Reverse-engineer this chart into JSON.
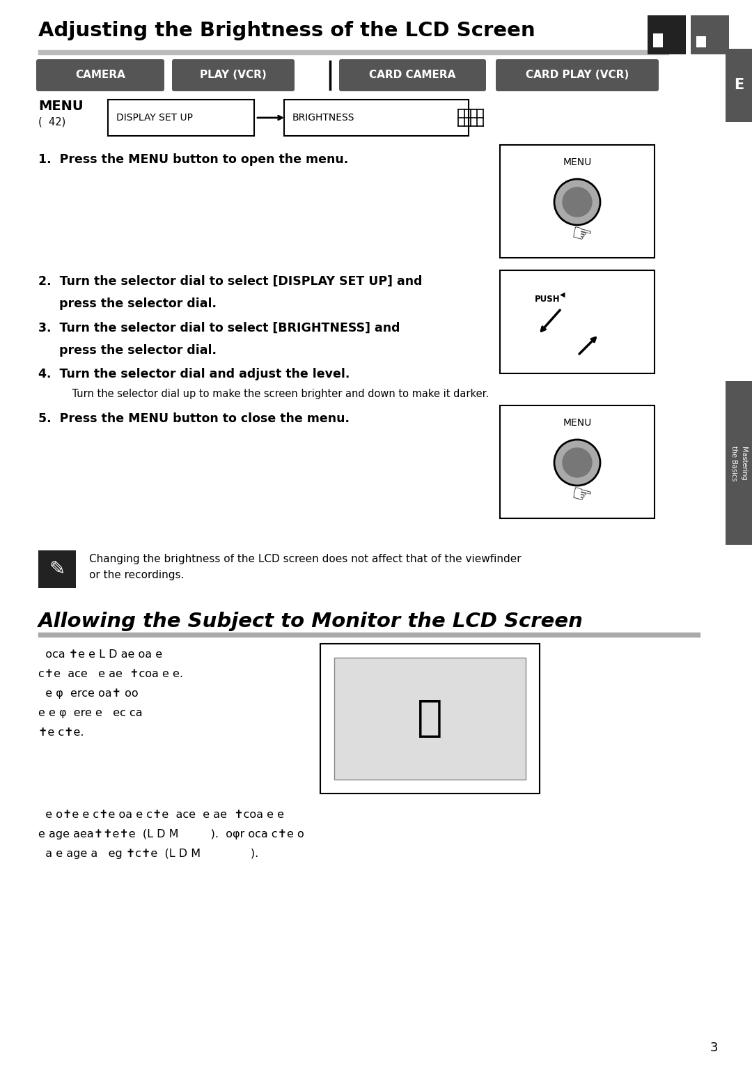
{
  "title1": "Adjusting the Brightness of the LCD Screen",
  "title2": "Allowing the Subject to Monitor the LCD Screen",
  "bg_color": "#ffffff",
  "header_bg": "#555555",
  "header_text_color": "#ffffff",
  "header_labels": [
    "CAMERA",
    "PLAY (VCR)",
    "CARD CAMERA",
    "CARD PLAY (VCR)"
  ],
  "side_tab_color": "#555555",
  "side_tab_text": "E",
  "menu_label": "MENU",
  "menu_sub": "(  42)",
  "step1": "1.  Press the MENU button to open the menu.",
  "step2a": "2.  Turn the selector dial to select [DISPLAY SET UP] and",
  "step2b": "     press the selector dial.",
  "step3a": "3.  Turn the selector dial to select [BRIGHTNESS] and",
  "step3b": "     press the selector dial.",
  "step4": "4.  Turn the selector dial and adjust the level.",
  "step4note": "    Turn the selector dial up to make the screen brighter and down to make it darker.",
  "step5": "5.  Press the MENU button to close the menu.",
  "note_text1": "Changing the brightness of the LCD screen does not affect that of the viewfinder",
  "note_text2": "or the recordings.",
  "sec2_line1": "  oca ✝e e L D ae oa e",
  "sec2_line2": "c✝e  ace   e ae  ✝coa e e.",
  "sec2_line3": "  e φ  erce oa✝ oo",
  "sec2_line4": "e e φ  ere e   ec ca",
  "sec2_line5": "✝e c✝e.",
  "sec2b_line1": "  e o✝e e c✝e oa e c✝e  ace  e ae  ✝coa e e",
  "sec2b_line2": "e age aea✝✝e✝e  (L D M         ).  oφr oca c✝e o",
  "sec2b_line3": "  a e age a   eg ✝c✝e  (L D M              ).",
  "page_number": "3"
}
